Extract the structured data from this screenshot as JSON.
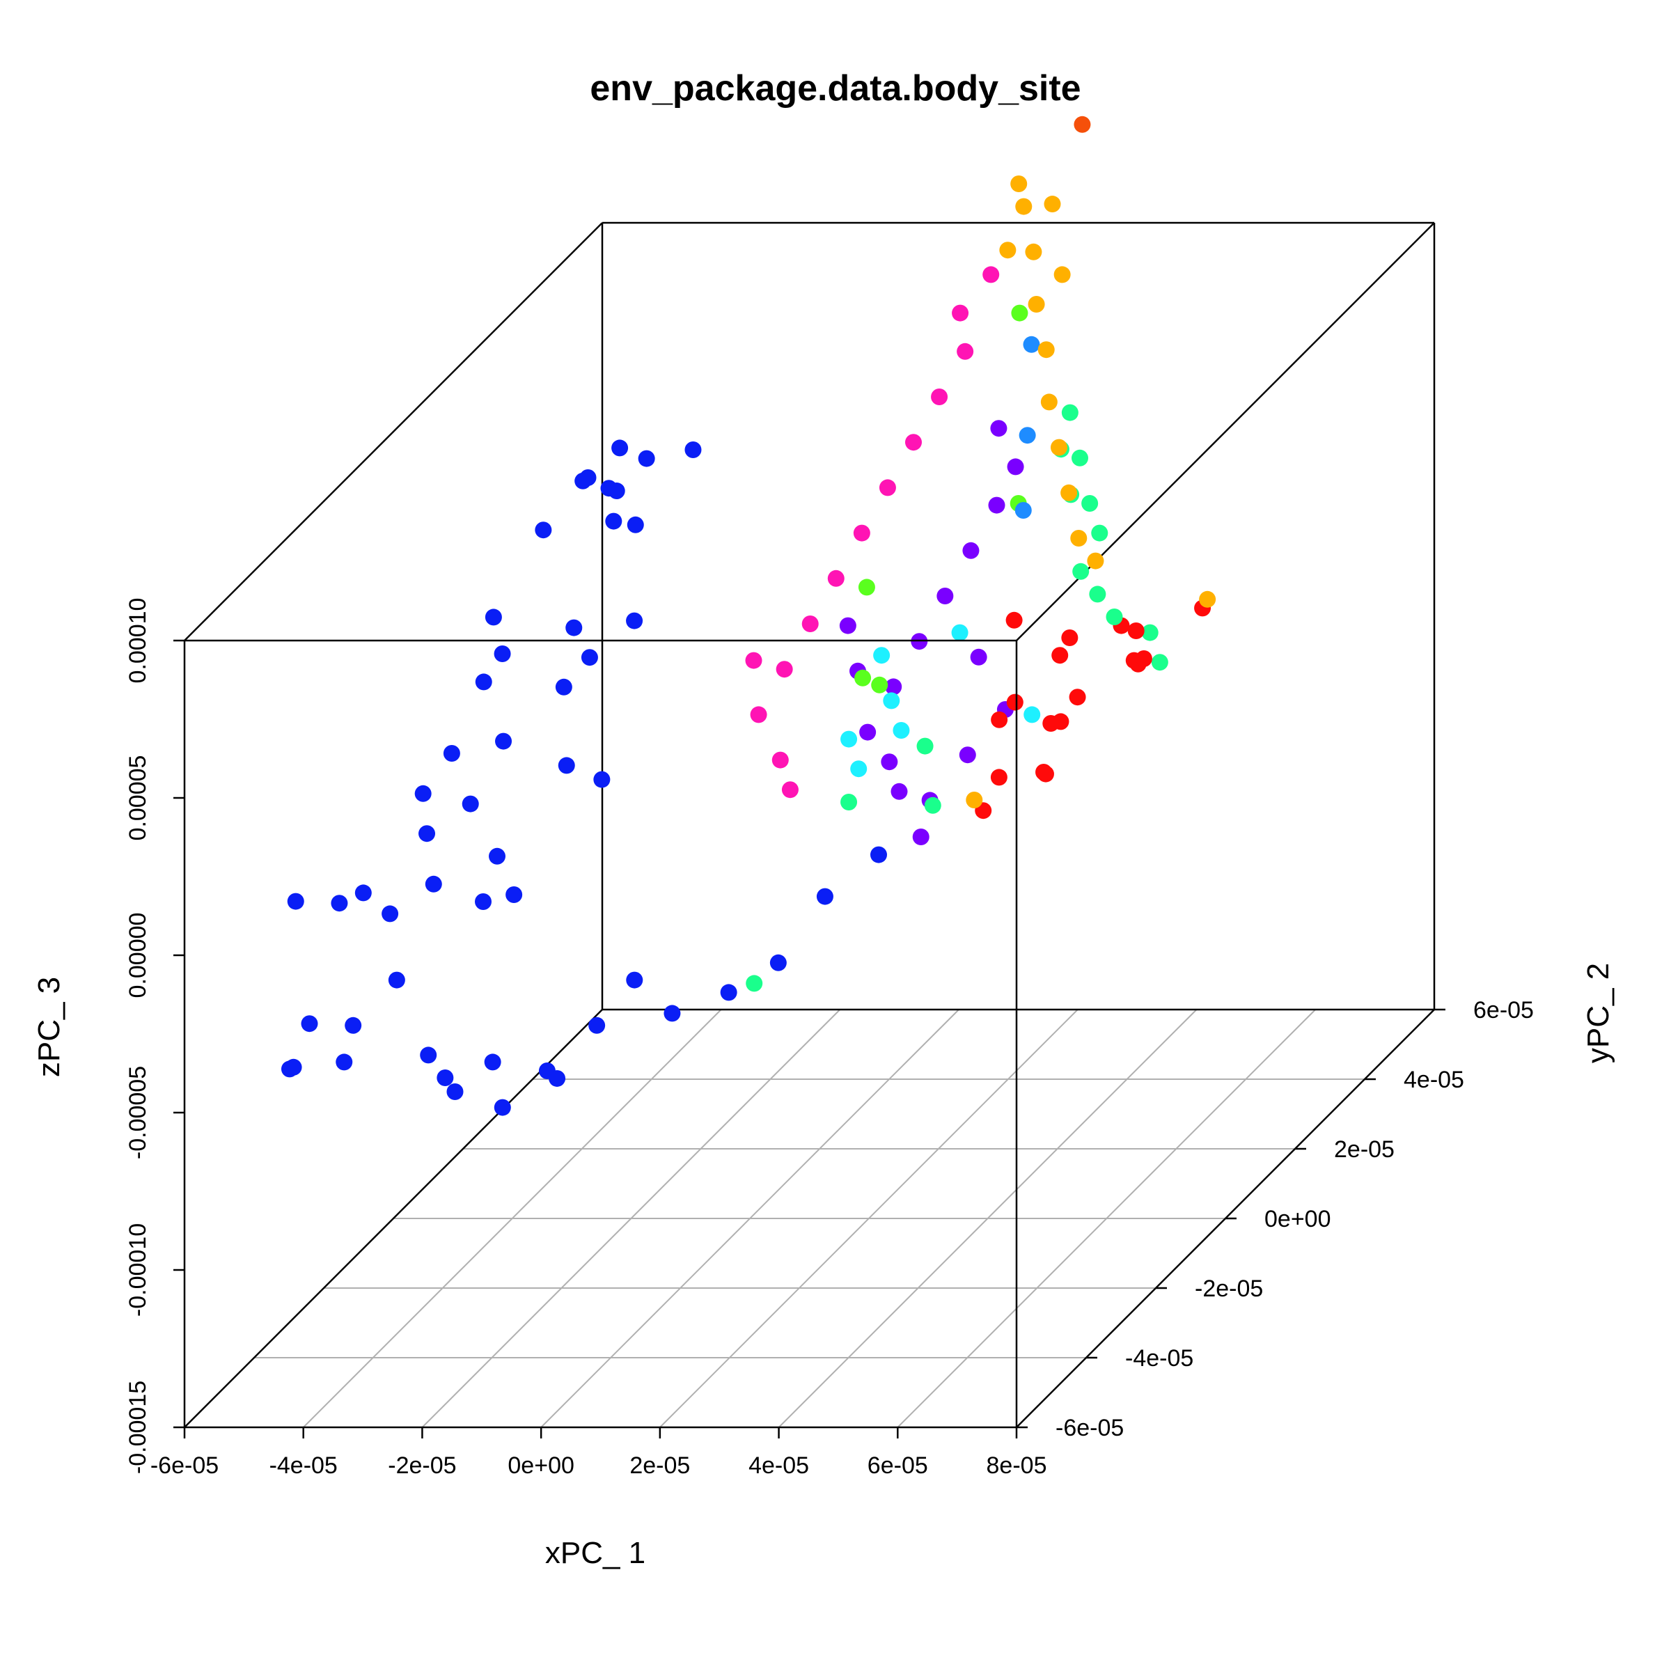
{
  "chart_data": {
    "type": "scatter",
    "projection": "3d-oblique",
    "title": "env_package.data.body_site",
    "xlabel": "xPC_ 1",
    "ylabel": "yPC_ 2",
    "zlabel": "zPC_ 3",
    "xlim": [
      -6e-05,
      8e-05
    ],
    "ylim": [
      -6e-05,
      6e-05
    ],
    "zlim": [
      -0.00015,
      0.0001
    ],
    "x_ticks": [
      "-6e-05",
      "-4e-05",
      "-2e-05",
      "0e+00",
      "2e-05",
      "4e-05",
      "6e-05",
      "8e-05"
    ],
    "y_ticks": [
      "-6e-05",
      "-4e-05",
      "-2e-05",
      "0e+00",
      "2e-05",
      "4e-05",
      "6e-05"
    ],
    "z_ticks": [
      "-0.00015",
      "-0.00010",
      "-0.00005",
      "0.00000",
      "0.00005",
      "0.00010"
    ],
    "grid": true,
    "legend": "none",
    "series": [
      {
        "color": "#0a1ef5",
        "values": [
          [
            -4.6e-05,
            3.2e-05,
            5e-05
          ],
          [
            -4.3e-05,
            3.6e-05,
            5.5e-05
          ],
          [
            -4e-05,
            3e-05,
            4.8e-05
          ],
          [
            -4.1e-05,
            2.2e-05,
            6e-05
          ],
          [
            -3.7e-05,
            2.4e-05,
            4.5e-05
          ],
          [
            -3.3e-05,
            4e-05,
            5e-05
          ],
          [
            -4.9e-05,
            1e-05,
            3e-05
          ],
          [
            -4.4e-05,
            4e-06,
            2.5e-05
          ],
          [
            -3.9e-05,
            1.6e-05,
            2e-05
          ],
          [
            -3.6e-05,
            8e-06,
            1e-05
          ],
          [
            -5.3e-05,
            1.4e-05,
            5e-06
          ],
          [
            -4.9e-05,
            -2e-06,
            0.0
          ],
          [
            -4.5e-05,
            6e-06,
            -5e-06
          ],
          [
            -5.5e-05,
            0.0,
            -1.5e-05
          ],
          [
            -5.3e-05,
            -4e-05,
            -5e-06
          ],
          [
            -4.8e-05,
            -3.6e-05,
            -1e-05
          ],
          [
            -4.3e-05,
            -3e-05,
            -2e-05
          ],
          [
            -3.8e-05,
            -2.6e-05,
            -1.5e-05
          ],
          [
            -4.6e-05,
            -4.8e-05,
            -3.5e-05
          ],
          [
            -4.1e-05,
            -4.4e-05,
            -4e-05
          ],
          [
            -3.6e-05,
            -4e-05,
            -3e-05
          ],
          [
            -3.2e-05,
            -2.2e-05,
            -2.5e-05
          ],
          [
            -4.6e-05,
            3.8e-05,
            4e-05
          ],
          [
            -4.2e-05,
            4.2e-05,
            4.5e-05
          ],
          [
            -3.8e-05,
            3.2e-05,
            3.5e-05
          ],
          [
            -5e-05,
            2.6e-05,
            4e-05
          ],
          [
            -4.5e-05,
            -1.6e-05,
            -1e-05
          ],
          [
            -4e-05,
            -1.2e-05,
            -5e-06
          ],
          [
            -5.1e-05,
            -2.4e-05,
            -2e-05
          ],
          [
            -4.7e-05,
            -5.2e-05,
            -4.5e-05
          ],
          [
            -4.4e-05,
            -5.6e-05,
            -4e-05
          ],
          [
            -3.9e-05,
            -5e-05,
            -4.5e-05
          ],
          [
            -3.4e-05,
            1.2e-05,
            1.5e-05
          ],
          [
            -3e-05,
            1.8e-05,
            2e-05
          ],
          [
            -2.5e-05,
            -1e-05,
            5e-06
          ],
          [
            -2.2e-05,
            -5e-06,
            -5e-06
          ],
          [
            -3.2e-05,
            -1.8e-05,
            -1.5e-05
          ],
          [
            -2.8e-05,
            -2e-05,
            -2.5e-05
          ],
          [
            -2.6e-05,
            -4.8e-05,
            -4.5e-05
          ],
          [
            -2.2e-05,
            -5e-05,
            -5e-05
          ],
          [
            -1.8e-05,
            -5.4e-05,
            -5e-05
          ],
          [
            -1.4e-05,
            -5e-05,
            -4.5e-05
          ],
          [
            -1e-05,
            -5.4e-05,
            -5.5e-05
          ],
          [
            -6e-06,
            -4.8e-05,
            -5e-05
          ],
          [
            -2e-06,
            -5.2e-05,
            -4.8e-05
          ],
          [
            0.0,
            -4.4e-05,
            -4e-05
          ],
          [
            4e-06,
            -4e-05,
            -3e-05
          ],
          [
            8e-06,
            -3.6e-05,
            -4.5e-05
          ],
          [
            1.4e-05,
            -3e-05,
            -4.5e-05
          ],
          [
            2e-05,
            -2.6e-05,
            -4e-05
          ],
          [
            2.2e-05,
            -1.6e-05,
            -3e-05
          ],
          [
            2.4e-05,
            -4e-06,
            -3e-05
          ]
        ]
      },
      {
        "color": "#ff0a0a",
        "values": [
          [
            5.8e-05,
            -1e-05,
            4e-05
          ],
          [
            6.2e-05,
            -1.4e-05,
            5e-05
          ],
          [
            6.6e-05,
            -6e-06,
            4.5e-05
          ],
          [
            7e-05,
            -8e-06,
            3.5e-05
          ],
          [
            6e-05,
            -1.6e-05,
            2.5e-05
          ],
          [
            6.4e-05,
            -2e-05,
            3e-05
          ],
          [
            6.8e-05,
            -2.2e-05,
            4e-05
          ],
          [
            7.2e-05,
            -1.2e-05,
            5e-05
          ],
          [
            5.6e-05,
            -2.4e-05,
            3.5e-05
          ],
          [
            6.1e-05,
            -2.8e-05,
            4.5e-05
          ],
          [
            6.5e-05,
            -2.6e-05,
            2e-05
          ],
          [
            7.4e-05,
            -1.6e-05,
            4.5e-05
          ],
          [
            7.8e-05,
            -2e-05,
            5e-05
          ],
          [
            8.2e-05,
            -1e-05,
            5.5e-05
          ],
          [
            5.8e-05,
            -3.2e-05,
            1.5e-05
          ],
          [
            6.7e-05,
            -3e-05,
            2.5e-05
          ],
          [
            6.3e-05,
            -3.6e-05,
            3e-05
          ],
          [
            5.5e-05,
            -1.8e-05,
            6e-05
          ]
        ]
      },
      {
        "color": "#ffb000",
        "values": [
          [
            3.2e-05,
            2.4e-05,
            0.000145
          ],
          [
            3.6e-05,
            2e-05,
            0.000135
          ],
          [
            3.4e-05,
            1.6e-05,
            0.00014
          ],
          [
            4e-05,
            1.4e-05,
            0.000125
          ],
          [
            4.4e-05,
            1e-05,
            0.000115
          ],
          [
            4.8e-05,
            4e-06,
            0.000105
          ],
          [
            5.2e-05,
            0.0,
            9.5e-05
          ],
          [
            5.6e-05,
            -4e-06,
            8.5e-05
          ],
          [
            6e-05,
            -8e-06,
            7.5e-05
          ],
          [
            3e-05,
            2.6e-05,
            0.00015
          ],
          [
            3.8e-05,
            2.2e-05,
            0.000148
          ],
          [
            4.2e-05,
            1.8e-05,
            0.00013
          ],
          [
            6.4e-05,
            -1e-05,
            7e-05
          ],
          [
            8.4e-05,
            -1.2e-05,
            6e-05
          ],
          [
            6e-05,
            -3.8e-05,
            2.5e-05
          ]
        ]
      },
      {
        "color": "#1aff8c",
        "values": [
          [
            4.8e-05,
            1e-05,
            9.5e-05
          ],
          [
            5.2e-05,
            6e-06,
            8.5e-05
          ],
          [
            5.6e-05,
            2e-06,
            7.5e-05
          ],
          [
            6e-05,
            -2e-06,
            7e-05
          ],
          [
            5.8e-05,
            -4e-06,
            6e-05
          ],
          [
            6.2e-05,
            -6e-06,
            5.5e-05
          ],
          [
            6.6e-05,
            -8e-06,
            5e-05
          ],
          [
            5.4e-05,
            0.0,
            8e-05
          ],
          [
            5e-05,
            4e-06,
            9e-05
          ],
          [
            7.2e-05,
            -8e-06,
            4.5e-05
          ],
          [
            7.6e-05,
            -1.2e-05,
            4e-05
          ],
          [
            4.6e-05,
            -2.6e-05,
            1e-05
          ],
          [
            4e-05,
            -1.8e-05,
            2e-05
          ],
          [
            3e-05,
            -5e-05,
            -2e-05
          ],
          [
            2.6e-05,
            -1.6e-05,
            0.0
          ]
        ]
      },
      {
        "color": "#7a00ff",
        "values": [
          [
            3.8e-05,
            6e-06,
            7e-05
          ],
          [
            3.6e-05,
            2e-06,
            6e-05
          ],
          [
            3.4e-05,
            -2e-06,
            5e-05
          ],
          [
            3.2e-05,
            -6e-06,
            4e-05
          ],
          [
            3e-05,
            -1e-05,
            3e-05
          ],
          [
            2.8e-05,
            -1.4e-05,
            2e-05
          ],
          [
            3.4e-05,
            -1.8e-05,
            1.5e-05
          ],
          [
            3.8e-05,
            -2.2e-05,
            1e-05
          ],
          [
            4.2e-05,
            -2e-05,
            5e-06
          ],
          [
            4.6e-05,
            -1.6e-05,
            1.5e-05
          ],
          [
            5e-05,
            -1.2e-05,
            2.5e-05
          ],
          [
            4.2e-05,
            -6e-06,
            3.5e-05
          ],
          [
            2.4e-05,
            -1e-05,
            3.5e-05
          ],
          [
            2e-05,
            -6e-06,
            4.5e-05
          ],
          [
            4e-05,
            8e-06,
            8e-05
          ],
          [
            3.6e-05,
            1e-05,
            9e-05
          ],
          [
            4.4e-05,
            -2.6e-05,
            0.0
          ]
        ]
      },
      {
        "color": "#ff14b4",
        "values": [
          [
            2.6e-05,
            1.6e-05,
            0.00012
          ],
          [
            2.8e-05,
            1.4e-05,
            0.00011
          ],
          [
            2.6e-05,
            1e-05,
            0.0001
          ],
          [
            2.4e-05,
            6e-06,
            9e-05
          ],
          [
            2.2e-05,
            2e-06,
            8e-05
          ],
          [
            2e-05,
            -2e-06,
            7e-05
          ],
          [
            1.8e-05,
            -6e-06,
            6e-05
          ],
          [
            1.6e-05,
            -1e-05,
            5e-05
          ],
          [
            1.4e-05,
            -1.4e-05,
            4e-05
          ],
          [
            1.2e-05,
            -1.8e-05,
            3e-05
          ],
          [
            1.8e-05,
            -2.2e-05,
            2e-05
          ],
          [
            2.2e-05,
            -2.6e-05,
            1.5e-05
          ],
          [
            1e-05,
            -1.6e-05,
            4.5e-05
          ],
          [
            3e-05,
            1.8e-05,
            0.00013
          ]
        ]
      },
      {
        "color": "#1ef0ff",
        "values": [
          [
            2.8e-05,
            -1e-05,
            4e-05
          ],
          [
            3.2e-05,
            -1.4e-05,
            3e-05
          ],
          [
            3.6e-05,
            -1.8e-05,
            2.5e-05
          ],
          [
            2.6e-05,
            -1.6e-05,
            2e-05
          ],
          [
            3e-05,
            -2e-05,
            1.5e-05
          ],
          [
            4e-05,
            -8e-06,
            4.5e-05
          ],
          [
            5.8e-05,
            -1.8e-05,
            3e-05
          ]
        ]
      },
      {
        "color": "#5aff1e",
        "values": [
          [
            2.2e-05,
            -4e-06,
            5.5e-05
          ],
          [
            2.6e-05,
            -1.2e-05,
            3.5e-05
          ],
          [
            3e-05,
            -1.4e-05,
            3.5e-05
          ],
          [
            4.4e-05,
            2e-06,
            7.5e-05
          ],
          [
            3.6e-05,
            1.6e-05,
            0.00012
          ]
        ]
      },
      {
        "color": "#1e8cff",
        "values": [
          [
            3.8e-05,
            1.6e-05,
            0.00011
          ],
          [
            4.2e-05,
            8e-06,
            9e-05
          ],
          [
            4.6e-05,
            0.0,
            7.5e-05
          ]
        ]
      },
      {
        "color": "#f5500a",
        "values": [
          [
            3.6e-05,
            3.4e-05,
            0.00016
          ]
        ]
      }
    ]
  }
}
